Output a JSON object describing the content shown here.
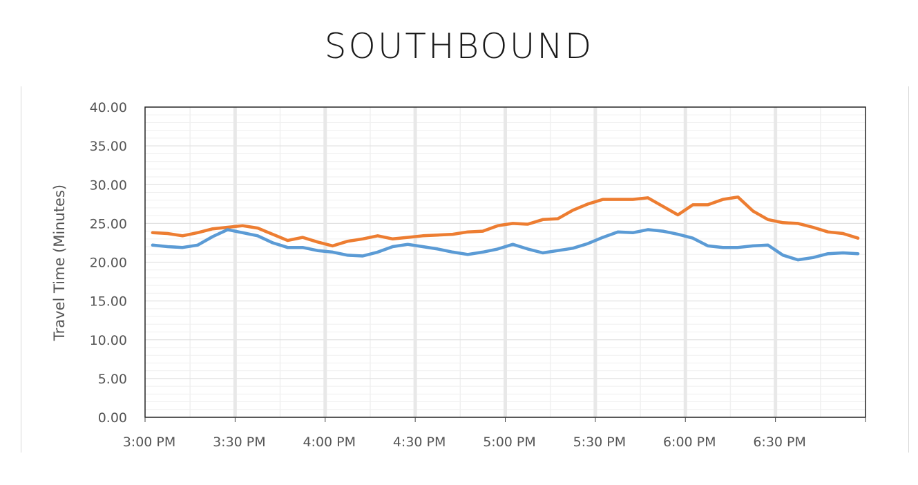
{
  "chart_data": {
    "type": "line",
    "title": "SOUTHBOUND",
    "xlabel": "",
    "ylabel": "Travel Time (Minutes)",
    "ylim": [
      0,
      40
    ],
    "xlim_minutes": [
      0,
      240
    ],
    "grid": true,
    "y_ticks": [
      "0.00",
      "5.00",
      "10.00",
      "15.00",
      "20.00",
      "25.00",
      "30.00",
      "35.00",
      "40.00"
    ],
    "y_tick_values": [
      0,
      5,
      10,
      15,
      20,
      25,
      30,
      35,
      40
    ],
    "x_tick_labels": [
      "3:00 PM",
      "3:30 PM",
      "4:00 PM",
      "4:30 PM",
      "5:00 PM",
      "5:30 PM",
      "6:00 PM",
      "6:30 PM"
    ],
    "x_tick_minutes": [
      0,
      30,
      60,
      90,
      120,
      150,
      180,
      210
    ],
    "series": [
      {
        "color": "#ed7d31",
        "x_minutes": [
          2.5,
          7.5,
          12.5,
          17.5,
          22.5,
          27.5,
          32.5,
          37.5,
          42.5,
          47.5,
          52.5,
          57.5,
          62.5,
          67.5,
          72.5,
          77.5,
          82.5,
          87.5,
          92.5,
          97.5,
          102.5,
          107.5,
          112.5,
          117.5,
          122.5,
          127.5,
          132.5,
          137.5,
          142.5,
          147.5,
          152.5,
          157.5,
          162.5,
          167.5,
          172.5,
          177.5,
          182.5,
          187.5,
          192.5,
          197.5,
          202.5,
          207.5,
          212.5,
          217.5,
          222.5,
          227.5,
          232.5,
          237.5
        ],
        "values": [
          23.8,
          23.7,
          23.4,
          23.8,
          24.3,
          24.5,
          24.7,
          24.4,
          23.6,
          22.8,
          23.2,
          22.6,
          22.1,
          22.7,
          23.0,
          23.4,
          23.0,
          23.2,
          23.4,
          23.5,
          23.6,
          23.9,
          24.0,
          24.7,
          25.0,
          24.9,
          25.5,
          25.6,
          26.7,
          27.5,
          28.1,
          28.1,
          28.1,
          28.3,
          27.2,
          26.1,
          27.4,
          27.4,
          28.1,
          28.4,
          26.6,
          25.5,
          25.1,
          25.0,
          24.5,
          23.9,
          23.7,
          23.1
        ]
      },
      {
        "color": "#5b9bd5",
        "x_minutes": [
          2.5,
          7.5,
          12.5,
          17.5,
          22.5,
          27.5,
          32.5,
          37.5,
          42.5,
          47.5,
          52.5,
          57.5,
          62.5,
          67.5,
          72.5,
          77.5,
          82.5,
          87.5,
          92.5,
          97.5,
          102.5,
          107.5,
          112.5,
          117.5,
          122.5,
          127.5,
          132.5,
          137.5,
          142.5,
          147.5,
          152.5,
          157.5,
          162.5,
          167.5,
          172.5,
          177.5,
          182.5,
          187.5,
          192.5,
          197.5,
          202.5,
          207.5,
          212.5,
          217.5,
          222.5,
          227.5,
          232.5,
          237.5
        ],
        "values": [
          22.2,
          22.0,
          21.9,
          22.2,
          23.3,
          24.2,
          23.8,
          23.4,
          22.5,
          21.9,
          21.9,
          21.5,
          21.3,
          20.9,
          20.8,
          21.3,
          22.0,
          22.3,
          22.0,
          21.7,
          21.3,
          21.0,
          21.3,
          21.7,
          22.3,
          21.7,
          21.2,
          21.5,
          21.8,
          22.4,
          23.2,
          23.9,
          23.8,
          24.2,
          24.0,
          23.6,
          23.1,
          22.1,
          21.9,
          21.9,
          22.1,
          22.2,
          20.9,
          20.3,
          20.6,
          21.1,
          21.2,
          21.1
        ]
      }
    ]
  }
}
